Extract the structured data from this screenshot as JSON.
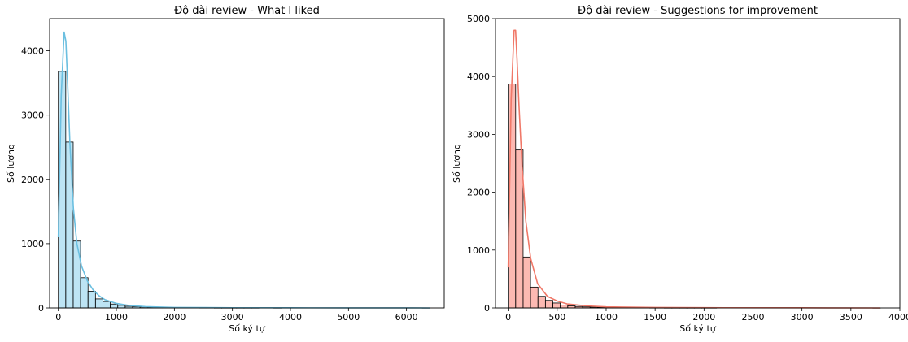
{
  "chart_data": [
    {
      "type": "histogram",
      "title": "Độ dài review - What I liked",
      "xlabel": "Số ký tự",
      "ylabel": "Số lượng",
      "xlim": [
        -150,
        6650
      ],
      "ylim": [
        0,
        4500
      ],
      "x_ticks": [
        0,
        1000,
        2000,
        3000,
        4000,
        5000,
        6000
      ],
      "y_ticks": [
        0,
        1000,
        2000,
        3000,
        4000
      ],
      "grid": false,
      "bin_width": 128,
      "bin_start": 0,
      "bar_color": "#87CEEB",
      "kde_color": "#6BBFE0",
      "values": [
        3680,
        2580,
        1040,
        470,
        260,
        140,
        100,
        60,
        40,
        25,
        20,
        15,
        10,
        8,
        6,
        5,
        4,
        3,
        3,
        2,
        2,
        1,
        1,
        1,
        1,
        1,
        1,
        0,
        0,
        1,
        0,
        0,
        0,
        0,
        0,
        0,
        0,
        0,
        0,
        0,
        0,
        0,
        0,
        0,
        0,
        0,
        0,
        0,
        0,
        1
      ],
      "kde": {
        "x": [
          0,
          50,
          100,
          130,
          160,
          200,
          260,
          320,
          400,
          500,
          600,
          700,
          800,
          1000,
          1200,
          1500,
          2000,
          3000,
          4000,
          5000,
          6400
        ],
        "y": [
          1100,
          3300,
          4290,
          4150,
          3500,
          2550,
          1550,
          1000,
          650,
          420,
          280,
          190,
          130,
          70,
          40,
          20,
          8,
          3,
          2,
          1,
          0
        ]
      }
    },
    {
      "type": "histogram",
      "title": "Độ dài review - Suggestions for improvement",
      "xlabel": "Số ký tự",
      "ylabel": "Số lượng",
      "xlim": [
        -130,
        4000
      ],
      "ylim": [
        0,
        5000
      ],
      "x_ticks": [
        0,
        500,
        1000,
        1500,
        2000,
        2500,
        3000,
        3500,
        4000
      ],
      "y_ticks": [
        0,
        1000,
        2000,
        3000,
        4000,
        5000
      ],
      "grid": false,
      "bin_width": 76,
      "bin_start": 0,
      "bar_color": "#FA8072",
      "kde_color": "#F07868",
      "values": [
        3870,
        2730,
        880,
        360,
        200,
        130,
        85,
        50,
        35,
        25,
        18,
        14,
        10,
        8,
        6,
        5,
        4,
        3,
        3,
        2,
        2,
        1,
        1,
        1,
        1,
        1,
        1,
        1,
        0,
        0,
        0,
        0,
        0,
        0,
        0,
        0,
        0,
        0,
        0,
        0,
        0,
        0,
        0,
        0,
        0,
        0,
        0,
        0,
        0,
        1
      ],
      "kde": {
        "x": [
          0,
          30,
          60,
          75,
          90,
          110,
          140,
          180,
          230,
          300,
          400,
          500,
          600,
          800,
          1000,
          1500,
          2000,
          3000,
          3800
        ],
        "y": [
          700,
          3600,
          4800,
          4800,
          4300,
          3500,
          2500,
          1500,
          850,
          420,
          200,
          120,
          70,
          35,
          18,
          8,
          4,
          2,
          0
        ]
      }
    }
  ]
}
